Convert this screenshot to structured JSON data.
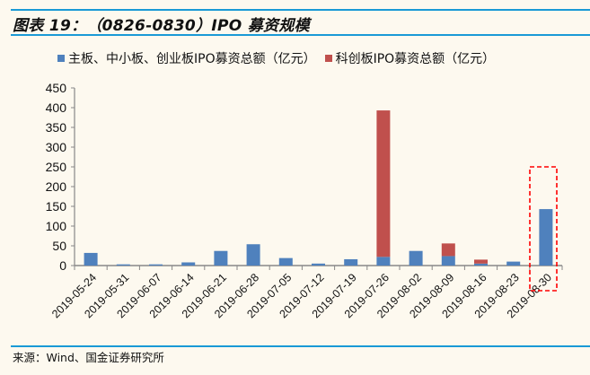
{
  "header": {
    "title": "图表 19：（0826-0830）IPO 募资规模"
  },
  "legend": {
    "items": [
      {
        "label": "主板、中小板、创业板IPO募资总额（亿元）",
        "color": "#4f81bd"
      },
      {
        "label": "科创板IPO募资总额（亿元）",
        "color": "#c0504d"
      }
    ]
  },
  "footer": {
    "source": "来源：Wind、国金证券研究所"
  },
  "chart_data": {
    "type": "bar",
    "stacked": true,
    "title": "图表 19：（0826-0830）IPO 募资规模",
    "xlabel": "",
    "ylabel": "",
    "ylim": [
      0,
      450
    ],
    "yticks": [
      0,
      50,
      100,
      150,
      200,
      250,
      300,
      350,
      400,
      450
    ],
    "grid": false,
    "legend_position": "top",
    "categories": [
      "2019-05-24",
      "2019-05-31",
      "2019-06-07",
      "2019-06-14",
      "2019-06-21",
      "2019-06-28",
      "2019-07-05",
      "2019-07-12",
      "2019-07-19",
      "2019-07-26",
      "2019-08-02",
      "2019-08-09",
      "2019-08-16",
      "2019-08-23",
      "2019-08-30"
    ],
    "series": [
      {
        "name": "主板、中小板、创业板IPO募资总额（亿元）",
        "color": "#4f81bd",
        "values": [
          32,
          3,
          3,
          8,
          37,
          54,
          19,
          5,
          16,
          22,
          37,
          24,
          5,
          10,
          143
        ]
      },
      {
        "name": "科创板IPO募资总额（亿元）",
        "color": "#c0504d",
        "values": [
          0,
          0,
          0,
          0,
          0,
          0,
          0,
          0,
          0,
          371,
          0,
          32,
          10,
          0,
          0
        ]
      }
    ],
    "annotations": [
      {
        "type": "dashed-box",
        "target": "2019-08-30",
        "color": "#ff0000"
      }
    ]
  }
}
